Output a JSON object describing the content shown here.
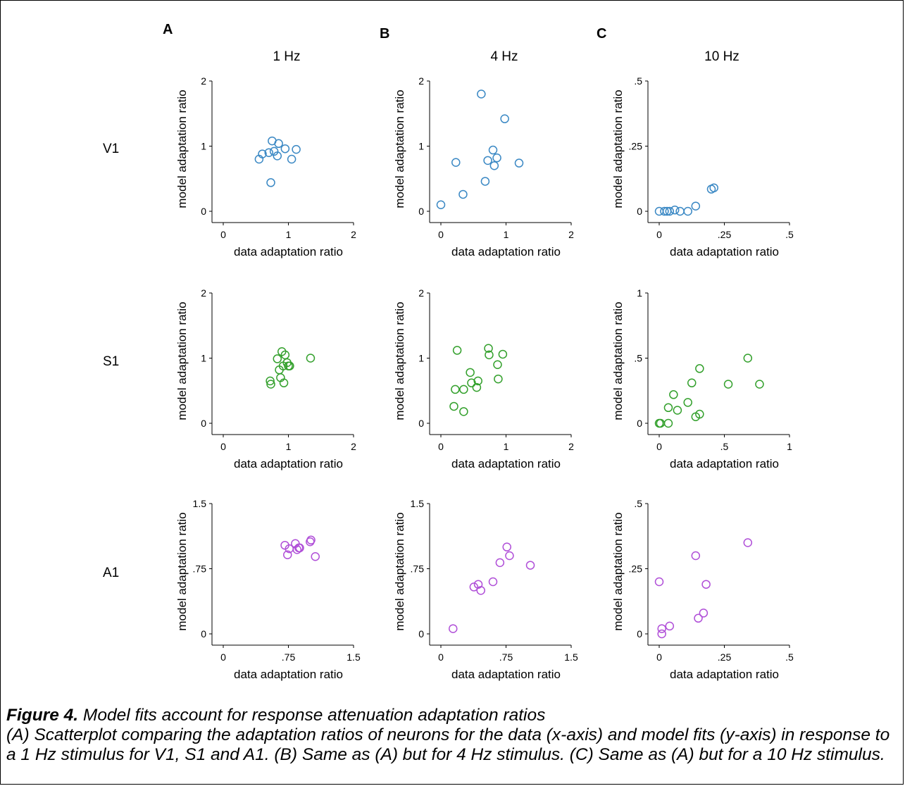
{
  "panel_letters": [
    "A",
    "B",
    "C"
  ],
  "column_titles": [
    "1 Hz",
    "4 Hz",
    "10 Hz"
  ],
  "row_labels": [
    "V1",
    "S1",
    "A1"
  ],
  "caption": {
    "title": "Figure 4.",
    "title_rest": " Model fits account for response attenuation adaptation ratios",
    "body": "(A) Scatterplot comparing the adaptation ratios of neurons for the data (x-axis) and model fits (y-axis) in response to a 1 Hz stimulus for V1, S1 and A1. (B) Same as (A) but for 4 Hz stimulus. (C) Same as (A) but for a 10 Hz stimulus."
  },
  "colors": {
    "V1": "#3a88c4",
    "S1": "#33a02c",
    "A1": "#b04fd8"
  },
  "chart_data": [
    {
      "type": "scatter",
      "row": "V1",
      "column": "1 Hz",
      "panel": "A",
      "xlabel": "data adaptation ratio",
      "ylabel": "model adaptation ratio",
      "xlim": [
        0,
        2
      ],
      "ylim": [
        0,
        2
      ],
      "xticks": [
        0,
        1,
        2
      ],
      "xticklabels": [
        "0",
        "1",
        "2"
      ],
      "yticks": [
        0,
        1,
        2
      ],
      "yticklabels": [
        "0",
        "1",
        "2"
      ],
      "color": "#3a88c4",
      "x": [
        0.55,
        0.6,
        0.7,
        0.73,
        0.75,
        0.78,
        0.83,
        0.85,
        0.95,
        1.05,
        1.12
      ],
      "y": [
        0.8,
        0.88,
        0.9,
        0.44,
        1.08,
        0.92,
        0.85,
        1.04,
        0.96,
        0.8,
        0.95
      ]
    },
    {
      "type": "scatter",
      "row": "V1",
      "column": "4 Hz",
      "panel": "B",
      "xlabel": "data adaptation ratio",
      "ylabel": "model adaptation ratio",
      "xlim": [
        0,
        2
      ],
      "ylim": [
        0,
        2
      ],
      "xticks": [
        0,
        1,
        2
      ],
      "xticklabels": [
        "0",
        "1",
        "2"
      ],
      "yticks": [
        0,
        1,
        2
      ],
      "yticklabels": [
        "0",
        "1",
        "2"
      ],
      "color": "#3a88c4",
      "x": [
        0.0,
        0.23,
        0.34,
        0.62,
        0.68,
        0.72,
        0.8,
        0.82,
        0.86,
        0.98,
        1.2
      ],
      "y": [
        0.1,
        0.75,
        0.26,
        1.8,
        0.46,
        0.78,
        0.94,
        0.7,
        0.82,
        1.42,
        0.74
      ]
    },
    {
      "type": "scatter",
      "row": "V1",
      "column": "10 Hz",
      "panel": "C",
      "xlabel": "data adaptation ratio",
      "ylabel": "model adaptation ratio",
      "xlim": [
        0,
        0.5
      ],
      "ylim": [
        0,
        0.5
      ],
      "xticks": [
        0,
        0.25,
        0.5
      ],
      "xticklabels": [
        "0",
        ".25",
        ".5"
      ],
      "yticks": [
        0,
        0.25,
        0.5
      ],
      "yticklabels": [
        "0",
        ".25",
        ".5"
      ],
      "color": "#3a88c4",
      "x": [
        0.0,
        0.02,
        0.03,
        0.04,
        0.06,
        0.08,
        0.11,
        0.14,
        0.2,
        0.21
      ],
      "y": [
        0.0,
        0.0,
        0.0,
        0.0,
        0.005,
        0.0,
        0.0,
        0.02,
        0.085,
        0.09
      ]
    },
    {
      "type": "scatter",
      "row": "S1",
      "column": "1 Hz",
      "panel": "A",
      "xlabel": "data adaptation ratio",
      "ylabel": "model adaptation ratio",
      "xlim": [
        0,
        2
      ],
      "ylim": [
        0,
        2
      ],
      "xticks": [
        0,
        1,
        2
      ],
      "xticklabels": [
        "0",
        "1",
        "2"
      ],
      "yticks": [
        0,
        1,
        2
      ],
      "yticklabels": [
        "0",
        "1",
        "2"
      ],
      "color": "#33a02c",
      "x": [
        0.72,
        0.73,
        0.83,
        0.86,
        0.88,
        0.9,
        0.92,
        0.93,
        0.95,
        0.98,
        1.0,
        1.02,
        1.34
      ],
      "y": [
        0.65,
        0.6,
        0.99,
        0.82,
        0.7,
        1.1,
        0.88,
        0.62,
        1.05,
        0.93,
        0.88,
        0.88,
        1.0
      ]
    },
    {
      "type": "scatter",
      "row": "S1",
      "column": "4 Hz",
      "panel": "B",
      "xlabel": "data adaptation ratio",
      "ylabel": "model adaptation ratio",
      "xlim": [
        0,
        2
      ],
      "ylim": [
        0,
        2
      ],
      "xticks": [
        0,
        1,
        2
      ],
      "xticklabels": [
        "0",
        "1",
        "2"
      ],
      "yticks": [
        0,
        1,
        2
      ],
      "yticklabels": [
        "0",
        "1",
        "2"
      ],
      "color": "#33a02c",
      "x": [
        0.2,
        0.22,
        0.25,
        0.35,
        0.35,
        0.45,
        0.47,
        0.55,
        0.57,
        0.73,
        0.74,
        0.87,
        0.88,
        0.95
      ],
      "y": [
        0.26,
        0.52,
        1.12,
        0.52,
        0.18,
        0.78,
        0.62,
        0.55,
        0.65,
        1.15,
        1.05,
        0.9,
        0.68,
        1.06
      ]
    },
    {
      "type": "scatter",
      "row": "S1",
      "column": "10 Hz",
      "panel": "C",
      "xlabel": "data adaptation ratio",
      "ylabel": "model adaptation ratio",
      "xlim": [
        0,
        1
      ],
      "ylim": [
        0,
        1
      ],
      "xticks": [
        0,
        0.5,
        1
      ],
      "xticklabels": [
        "0",
        ".5",
        "1"
      ],
      "yticks": [
        0,
        0.5,
        1
      ],
      "yticklabels": [
        "0",
        ".5",
        "1"
      ],
      "color": "#33a02c",
      "x": [
        0.0,
        0.01,
        0.07,
        0.07,
        0.11,
        0.14,
        0.22,
        0.25,
        0.28,
        0.31,
        0.31,
        0.53,
        0.68,
        0.77
      ],
      "y": [
        0.0,
        0.0,
        0.0,
        0.12,
        0.22,
        0.1,
        0.16,
        0.31,
        0.05,
        0.07,
        0.42,
        0.3,
        0.5,
        0.3
      ]
    },
    {
      "type": "scatter",
      "row": "A1",
      "column": "1 Hz",
      "panel": "A",
      "xlabel": "data adaptation ratio",
      "ylabel": "model adaptation ratio",
      "xlim": [
        0,
        1.5
      ],
      "ylim": [
        0,
        1.5
      ],
      "xticks": [
        0,
        0.75,
        1.5
      ],
      "xticklabels": [
        "0",
        ".75",
        "1.5"
      ],
      "yticks": [
        0,
        0.75,
        1.5
      ],
      "yticklabels": [
        "0",
        ".75",
        "1.5"
      ],
      "color": "#b04fd8",
      "x": [
        0.71,
        0.74,
        0.76,
        0.83,
        0.85,
        0.87,
        0.88,
        1.0,
        1.01,
        1.06
      ],
      "y": [
        1.02,
        0.91,
        0.98,
        1.04,
        0.97,
        0.99,
        0.99,
        1.06,
        1.08,
        0.89
      ]
    },
    {
      "type": "scatter",
      "row": "A1",
      "column": "4 Hz",
      "panel": "B",
      "xlabel": "data adaptation ratio",
      "ylabel": "model adaptation ratio",
      "xlim": [
        0,
        1.5
      ],
      "ylim": [
        0,
        1.5
      ],
      "xticks": [
        0,
        0.75,
        1.5
      ],
      "xticklabels": [
        "0",
        ".75",
        "1.5"
      ],
      "yticks": [
        0,
        0.75,
        1.5
      ],
      "yticklabels": [
        "0",
        ".75",
        "1.5"
      ],
      "color": "#b04fd8",
      "x": [
        0.14,
        0.38,
        0.43,
        0.46,
        0.6,
        0.68,
        0.76,
        0.79,
        1.03
      ],
      "y": [
        0.06,
        0.54,
        0.57,
        0.5,
        0.6,
        0.82,
        1.0,
        0.9,
        0.79
      ]
    },
    {
      "type": "scatter",
      "row": "A1",
      "column": "10 Hz",
      "panel": "C",
      "xlabel": "data adaptation ratio",
      "ylabel": "model adaptation ratio",
      "xlim": [
        0,
        0.5
      ],
      "ylim": [
        0,
        0.5
      ],
      "xticks": [
        0,
        0.25,
        0.5
      ],
      "xticklabels": [
        "0",
        ".25",
        ".5"
      ],
      "yticks": [
        0,
        0.25,
        0.5
      ],
      "yticklabels": [
        "0",
        ".25",
        ".5"
      ],
      "color": "#b04fd8",
      "x": [
        0.0,
        0.01,
        0.01,
        0.04,
        0.14,
        0.15,
        0.17,
        0.18,
        0.34
      ],
      "y": [
        0.2,
        0.0,
        0.02,
        0.03,
        0.3,
        0.06,
        0.08,
        0.19,
        0.35
      ]
    }
  ]
}
